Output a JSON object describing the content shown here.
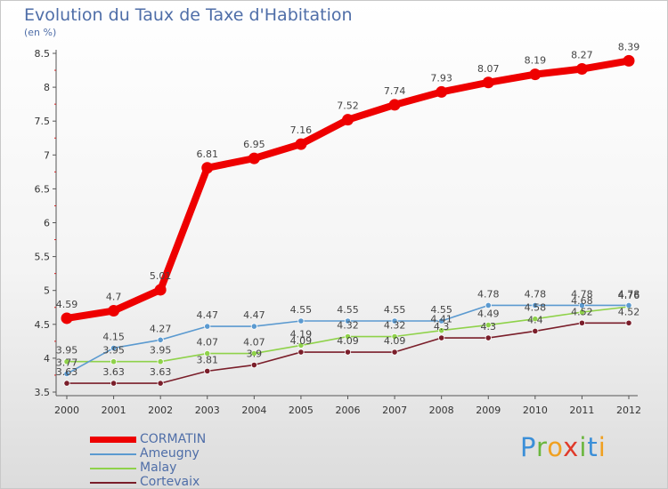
{
  "title": "Evolution du Taux de Taxe d'Habitation",
  "unit_label": "(en %)",
  "logo": {
    "text": "Proxiti",
    "letter_colors": [
      "#3b8fd8",
      "#6ab63e",
      "#f0a020",
      "#e03a2a",
      "#6ab63e",
      "#3b8fd8",
      "#f0a020"
    ]
  },
  "chart_data": {
    "type": "line",
    "title": "Evolution du Taux de Taxe d'Habitation",
    "ylabel": "(en %)",
    "xlabel": "",
    "x": [
      "2000",
      "2001",
      "2002",
      "2003",
      "2004",
      "2005",
      "2006",
      "2007",
      "2008",
      "2009",
      "2010",
      "2011",
      "2012"
    ],
    "ylim": [
      3.5,
      8.5
    ],
    "yticks": [
      "3.5",
      "4",
      "4.5",
      "5",
      "5.5",
      "6",
      "6.5",
      "7",
      "7.5",
      "8",
      "8.5"
    ],
    "grid": false,
    "legend_position": "bottom-left",
    "series": [
      {
        "name": "CORMATIN",
        "color": "#ee0000",
        "values": [
          4.59,
          4.7,
          5.01,
          6.81,
          6.95,
          7.16,
          7.52,
          7.74,
          7.93,
          8.07,
          8.19,
          8.27,
          8.39
        ],
        "labels": [
          "4.59",
          "4.7",
          "5.01",
          "6.81",
          "6.95",
          "7.16",
          "7.52",
          "7.74",
          "7.93",
          "8.07",
          "8.19",
          "8.27",
          "8.39"
        ]
      },
      {
        "name": "Ameugny",
        "color": "#5b9ad0",
        "values": [
          3.77,
          4.15,
          4.27,
          4.47,
          4.47,
          4.55,
          4.55,
          4.55,
          4.55,
          4.78,
          4.78,
          4.78,
          4.78
        ],
        "labels": [
          "3.77",
          "4.15",
          "4.27",
          "4.47",
          "4.47",
          "4.55",
          "4.55",
          "4.55",
          "4.55",
          "4.78",
          "4.78",
          "4.78",
          "4.78"
        ]
      },
      {
        "name": "Malay",
        "color": "#8fd24a",
        "values": [
          3.95,
          3.95,
          3.95,
          4.07,
          4.07,
          4.19,
          4.32,
          4.32,
          4.41,
          4.49,
          4.58,
          4.68,
          4.76
        ],
        "labels": [
          "3.95",
          "3.95",
          "3.95",
          "4.07",
          "4.07",
          "4.19",
          "4.32",
          "4.32",
          "4.41",
          "4.49",
          "4.58",
          "4.68",
          "4.76"
        ]
      },
      {
        "name": "Cortevaix",
        "color": "#7a1e2a",
        "values": [
          3.63,
          3.63,
          3.63,
          3.81,
          3.9,
          4.09,
          4.09,
          4.09,
          4.3,
          4.3,
          4.4,
          4.52,
          4.52
        ],
        "labels": [
          "3.63",
          "3.63",
          "3.63",
          "3.81",
          "3.9",
          "4.09",
          "4.09",
          "4.09",
          "4.3",
          "4.3",
          "4.4",
          "4.52",
          "4.52"
        ]
      }
    ]
  }
}
